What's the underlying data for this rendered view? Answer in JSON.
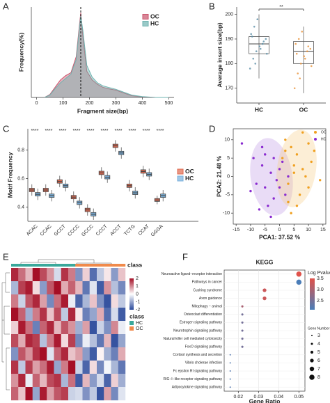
{
  "chart_data": [
    {
      "type": "area",
      "label": "A",
      "xlabel": "Fragment size(bp)",
      "ylabel": "Frequency(%)",
      "x": [
        30,
        50,
        70,
        90,
        110,
        130,
        150,
        160,
        167,
        175,
        190,
        210,
        230,
        250,
        270,
        300,
        330,
        360,
        400,
        450,
        500
      ],
      "series": [
        {
          "name": "OC",
          "color": "#c9536b",
          "values": [
            0,
            0.1,
            0.35,
            0.6,
            0.75,
            0.85,
            1.4,
            2.3,
            2.9,
            2.1,
            0.9,
            0.6,
            0.45,
            0.35,
            0.3,
            0.25,
            0.15,
            0.06,
            0.02,
            0,
            0
          ]
        },
        {
          "name": "HC",
          "color": "#6fb3b0",
          "values": [
            0,
            0.08,
            0.3,
            0.5,
            0.65,
            0.8,
            1.3,
            2.2,
            2.8,
            2.3,
            1.1,
            0.7,
            0.5,
            0.4,
            0.35,
            0.28,
            0.18,
            0.08,
            0.03,
            0,
            0
          ]
        }
      ],
      "vline": 167,
      "xlim": [
        -20,
        520
      ],
      "ylim": [
        0,
        3.1
      ],
      "xticks": [
        0,
        100,
        200,
        300,
        400,
        500
      ]
    },
    {
      "type": "box",
      "label": "B",
      "ylabel": "Average insert size(bp)",
      "categories": [
        "HC",
        "OC"
      ],
      "colors": [
        "#5b8fa8",
        "#e8923a"
      ],
      "boxes": [
        {
          "min": 174,
          "q1": 184,
          "median": 188,
          "q3": 191,
          "max": 200
        },
        {
          "min": 168,
          "q1": 180,
          "median": 185,
          "q3": 189,
          "max": 195
        }
      ],
      "points": [
        [
          178,
          182,
          185,
          187,
          188,
          190,
          192,
          195,
          198,
          186,
          189,
          184,
          191,
          180
        ],
        [
          170,
          176,
          180,
          183,
          185,
          186,
          188,
          190,
          193,
          182,
          187,
          179,
          184,
          174
        ]
      ],
      "significance": "**",
      "ylim": [
        164,
        203
      ],
      "yticks": [
        170,
        180,
        190,
        200
      ]
    },
    {
      "type": "grouped_box",
      "label": "C",
      "ylabel": "Motif Frequency",
      "categories": [
        "ACAC",
        "CCAC",
        "GCCT",
        "CCCC",
        "GCCC",
        "CCCT",
        "ACCT",
        "TCTG",
        "CCAT",
        "GGGA"
      ],
      "series": [
        {
          "name": "OC",
          "color": "#e0694f",
          "boxes": [
            {
              "min": 0.48,
              "q1": 0.508,
              "median": 0.52,
              "q3": 0.532,
              "max": 0.56
            },
            {
              "min": 0.48,
              "q1": 0.508,
              "median": 0.52,
              "q3": 0.532,
              "max": 0.56
            },
            {
              "min": 0.54,
              "q1": 0.568,
              "median": 0.58,
              "q3": 0.592,
              "max": 0.62
            },
            {
              "min": 0.43,
              "q1": 0.458,
              "median": 0.47,
              "q3": 0.482,
              "max": 0.51
            },
            {
              "min": 0.34,
              "q1": 0.368,
              "median": 0.38,
              "q3": 0.392,
              "max": 0.42
            },
            {
              "min": 0.6,
              "q1": 0.628,
              "median": 0.64,
              "q3": 0.652,
              "max": 0.68
            },
            {
              "min": 0.79,
              "q1": 0.818,
              "median": 0.83,
              "q3": 0.842,
              "max": 0.87
            },
            {
              "min": 0.51,
              "q1": 0.538,
              "median": 0.55,
              "q3": 0.562,
              "max": 0.59
            },
            {
              "min": 0.61,
              "q1": 0.638,
              "median": 0.65,
              "q3": 0.662,
              "max": 0.69
            },
            {
              "min": 0.42,
              "q1": 0.44,
              "median": 0.45,
              "q3": 0.46,
              "max": 0.48
            }
          ]
        },
        {
          "name": "HC",
          "color": "#79b0dc",
          "boxes": [
            {
              "min": 0.45,
              "q1": 0.478,
              "median": 0.49,
              "q3": 0.502,
              "max": 0.53
            },
            {
              "min": 0.44,
              "q1": 0.468,
              "median": 0.48,
              "q3": 0.492,
              "max": 0.52
            },
            {
              "min": 0.51,
              "q1": 0.538,
              "median": 0.55,
              "q3": 0.562,
              "max": 0.59
            },
            {
              "min": 0.39,
              "q1": 0.418,
              "median": 0.43,
              "q3": 0.442,
              "max": 0.47
            },
            {
              "min": 0.31,
              "q1": 0.338,
              "median": 0.35,
              "q3": 0.362,
              "max": 0.39
            },
            {
              "min": 0.57,
              "q1": 0.598,
              "median": 0.61,
              "q3": 0.622,
              "max": 0.65
            },
            {
              "min": 0.74,
              "q1": 0.768,
              "median": 0.78,
              "q3": 0.792,
              "max": 0.82
            },
            {
              "min": 0.46,
              "q1": 0.488,
              "median": 0.5,
              "q3": 0.512,
              "max": 0.54
            },
            {
              "min": 0.59,
              "q1": 0.618,
              "median": 0.63,
              "q3": 0.642,
              "max": 0.67
            },
            {
              "min": 0.44,
              "q1": 0.468,
              "median": 0.48,
              "q3": 0.492,
              "max": 0.52
            }
          ]
        }
      ],
      "significance": "****",
      "ylim": [
        0.3,
        0.95
      ],
      "yticks": [
        0.4,
        0.6,
        0.8
      ]
    },
    {
      "type": "scatter",
      "label": "D",
      "xlabel": "PCA1: 37.52 %",
      "ylabel": "PCA2: 21.48 %",
      "series": [
        {
          "name": "OC",
          "color": "#f0a020",
          "x": [
            2,
            4,
            6,
            8,
            10,
            12,
            5,
            3,
            7,
            9,
            1,
            11,
            6,
            4,
            8,
            14,
            2,
            5,
            10,
            3
          ],
          "y": [
            10,
            8,
            6,
            12,
            9,
            7,
            3,
            -2,
            -5,
            0,
            5,
            4,
            -8,
            -10,
            2,
            -1,
            7,
            1,
            -3,
            -7
          ]
        },
        {
          "name": "HC",
          "color": "#8a2bd0",
          "x": [
            -13,
            -10,
            -8,
            -6,
            -5,
            -3,
            -2,
            0,
            1,
            -4,
            -7,
            -9,
            -1,
            2,
            -6,
            -3,
            0,
            -5,
            -2,
            3
          ],
          "y": [
            9,
            -4,
            -2,
            3,
            6,
            1,
            -6,
            -3,
            4,
            -8,
            -9,
            5,
            -1,
            -5,
            8,
            -11,
            2,
            -3,
            5,
            0
          ]
        }
      ],
      "xlim": [
        -16,
        16
      ],
      "ylim": [
        -13,
        13
      ],
      "xticks": [
        -15,
        -10,
        -5,
        0,
        5,
        10,
        15
      ],
      "yticks": [
        -10,
        -5,
        0,
        5,
        10
      ]
    },
    {
      "type": "heatmap",
      "label": "E",
      "class_label": "class",
      "values": [
        [
          1.8,
          1.2,
          0.6,
          2,
          1.5,
          0.9,
          -0.4,
          1.7,
          1.1,
          -1.2,
          0.4,
          -1.6,
          -0.6,
          0.2,
          -1.1,
          0.5
        ],
        [
          -0.8,
          1.6,
          1.9,
          0.3,
          -1.1,
          1.4,
          2,
          0.7,
          1.3,
          0.6,
          -1.5,
          -0.3,
          -1.8,
          0.9,
          -0.7,
          -1.3
        ],
        [
          1.1,
          -0.5,
          1.4,
          1.8,
          0.8,
          -1.3,
          1.2,
          1.9,
          -0.2,
          -1.7,
          -0.8,
          0.5,
          -1.2,
          -1.9,
          0.3,
          -0.6
        ],
        [
          2,
          1.3,
          -0.9,
          1.1,
          1.7,
          0.5,
          1.5,
          -0.6,
          1.8,
          0.2,
          -1.4,
          -1,
          0.7,
          -1.6,
          -0.4,
          -1.8
        ],
        [
          0.4,
          1.9,
          1.2,
          -1.4,
          1.3,
          1.8,
          0.6,
          1.4,
          0.9,
          -0.9,
          0.8,
          -1.9,
          -0.5,
          -1.2,
          1,
          -0.2
        ],
        [
          1.5,
          0.7,
          1.8,
          1.6,
          -0.7,
          1.1,
          1.9,
          0.3,
          1.6,
          -1.3,
          -0.2,
          -0.7,
          -1.5,
          0.6,
          -1.9,
          -1
        ],
        [
          -1.2,
          1.4,
          0.9,
          1.7,
          2,
          -0.3,
          1.3,
          1.8,
          0.5,
          0.8,
          -1.1,
          -1.8,
          0.1,
          -0.9,
          -1.4,
          0.7
        ],
        [
          1.7,
          -0.6,
          1.6,
          0.8,
          1.2,
          1.9,
          -1,
          1.1,
          2,
          -0.5,
          -1.7,
          0.3,
          -1.3,
          -0.1,
          -0.8,
          -1.5
        ],
        [
          0.9,
          1.8,
          -0.2,
          1.3,
          0.6,
          1.5,
          1.7,
          -0.8,
          1.2,
          -1.8,
          0.6,
          -1.1,
          -0.4,
          -1.7,
          0.4,
          -0.9
        ],
        [
          1.3,
          0.5,
          2,
          -1,
          1.9,
          0.8,
          1.4,
          1.6,
          -0.5,
          -0.4,
          -1.2,
          -0.6,
          -1.9,
          0.8,
          -1.3,
          -0.3
        ]
      ],
      "column_class": [
        "HC",
        "HC",
        "HC",
        "HC",
        "HC",
        "HC",
        "HC",
        "HC",
        "HC",
        "OC",
        "OC",
        "OC",
        "OC",
        "OC",
        "OC",
        "OC"
      ],
      "classes": [
        {
          "name": "HC",
          "color": "#3aa89b"
        },
        {
          "name": "OC",
          "color": "#f08a4b"
        }
      ],
      "colors": {
        "low": "#2b4a9b",
        "mid": "#ffffff",
        "high": "#a50f26"
      },
      "clim": [
        -2,
        2
      ],
      "colorbar_ticks": [
        2,
        1,
        0,
        -1,
        -2
      ]
    },
    {
      "type": "bubble",
      "label": "F",
      "title": "KEGG",
      "xlabel": "Gene Ratio",
      "color_title": "Log Pvalue",
      "size_title": "Gene Number",
      "categories": [
        "Neuroactive ligand−receptor interaction",
        "Pathways in cancer",
        "Cushing syndrome",
        "Axon guidance",
        "Mitophagy − animal",
        "Osteoclast differentiation",
        "Estrogen signaling pathway",
        "Neurotrophin signaling pathway",
        "Natural killer cell mediated cytotoxicity",
        "FoxO signaling pathway",
        "Cortisol synthesis and secretion",
        "Vibrio cholerae infection",
        "Fc epsilon RI signaling pathway",
        "RIG−I−like receptor signaling pathway",
        "Adipocytokine signaling pathway"
      ],
      "x": [
        0.05,
        0.05,
        0.033,
        0.033,
        0.022,
        0.022,
        0.022,
        0.022,
        0.022,
        0.022,
        0.016,
        0.016,
        0.016,
        0.016,
        0.016
      ],
      "pvalue": [
        3.5,
        2.1,
        3.3,
        3.3,
        3,
        2.5,
        2.5,
        2.5,
        2.5,
        2.5,
        2.2,
        2.2,
        2.2,
        2.2,
        2.2
      ],
      "count": [
        8,
        8,
        6,
        6,
        4,
        4,
        4,
        4,
        4,
        4,
        3,
        3,
        3,
        3,
        3
      ],
      "colors": {
        "low": "#4a7db8",
        "high": "#e0524a"
      },
      "clim": [
        2.1,
        3.5
      ],
      "colorbar_ticks": [
        2.5,
        {
          "value": 3,
          "label": "3.0"
        },
        3.5
      ],
      "size_ticks": [
        3,
        4,
        5,
        6,
        7,
        8
      ],
      "xlim": [
        0.013,
        0.053
      ],
      "xticks": [
        0.02,
        0.03,
        0.04,
        0.05
      ]
    }
  ]
}
